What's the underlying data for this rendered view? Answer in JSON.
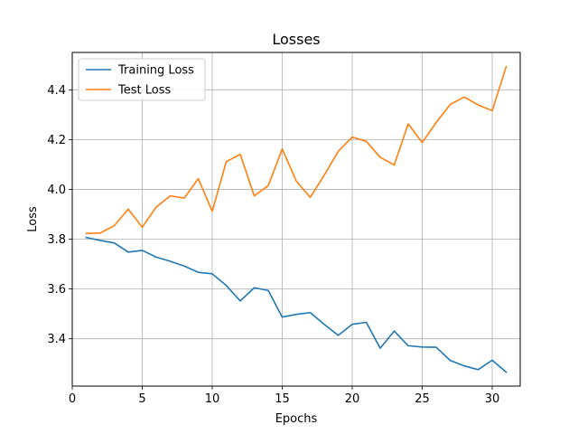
{
  "chart_data": {
    "type": "line",
    "title": "Losses",
    "xlabel": "Epochs",
    "ylabel": "Loss",
    "xlim": [
      0.0,
      32.0
    ],
    "ylim": [
      3.21,
      4.55
    ],
    "xticks": [
      0,
      5,
      10,
      15,
      20,
      25,
      30
    ],
    "yticks": [
      3.4,
      3.6,
      3.8,
      4.0,
      4.2,
      4.4
    ],
    "xtick_labels": [
      "0",
      "5",
      "10",
      "15",
      "20",
      "25",
      "30"
    ],
    "ytick_labels": [
      "3.4",
      "3.6",
      "3.8",
      "4.0",
      "4.2",
      "4.4"
    ],
    "grid": true,
    "legend_position": "top-left",
    "x": [
      1,
      2,
      3,
      4,
      5,
      6,
      7,
      8,
      9,
      10,
      11,
      12,
      13,
      14,
      15,
      16,
      17,
      18,
      19,
      20,
      21,
      22,
      23,
      24,
      25,
      26,
      27,
      28,
      29,
      30,
      31
    ],
    "series": [
      {
        "name": "Training Loss",
        "color": "#1f77b4",
        "values": [
          3.807,
          3.795,
          3.785,
          3.748,
          3.755,
          3.728,
          3.711,
          3.692,
          3.667,
          3.661,
          3.614,
          3.552,
          3.605,
          3.594,
          3.487,
          3.498,
          3.505,
          3.458,
          3.414,
          3.458,
          3.466,
          3.362,
          3.431,
          3.372,
          3.367,
          3.366,
          3.313,
          3.291,
          3.276,
          3.314,
          3.266
        ]
      },
      {
        "name": "Test Loss",
        "color": "#ff7f0e",
        "values": [
          3.823,
          3.825,
          3.854,
          3.921,
          3.848,
          3.929,
          3.974,
          3.965,
          4.043,
          3.912,
          4.111,
          4.141,
          3.974,
          4.015,
          4.162,
          4.034,
          3.968,
          4.057,
          4.153,
          4.21,
          4.193,
          4.129,
          4.098,
          4.263,
          4.188,
          4.269,
          4.341,
          4.371,
          4.339,
          4.316,
          4.493
        ]
      }
    ]
  }
}
